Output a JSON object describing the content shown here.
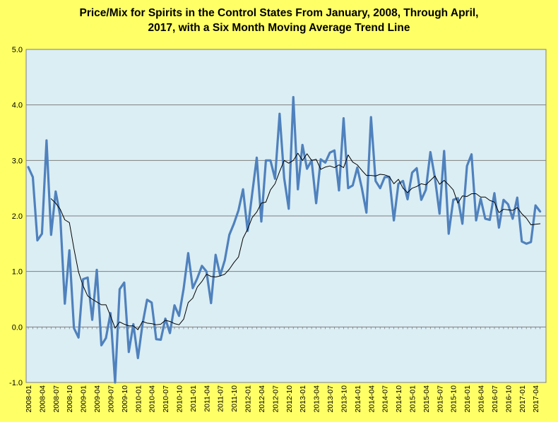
{
  "chart_data": {
    "type": "line",
    "title_lines": [
      "Price/Mix for Spirits in the Control States From January, 2008, Through April,",
      "2017, with a Six Month Moving Average Trend Line"
    ],
    "xlabel": "",
    "ylabel": "",
    "ylim": [
      -1.0,
      5.0
    ],
    "y_ticks": [
      "-1.0",
      "0.0",
      "1.0",
      "2.0",
      "3.0",
      "4.0",
      "5.0"
    ],
    "x_ticks": [
      "2008-01",
      "2008-04",
      "2008-07",
      "2008-10",
      "2009-01",
      "2009-04",
      "2009-07",
      "2009-10",
      "2010-01",
      "2010-04",
      "2010-07",
      "2010-10",
      "2011-01",
      "2011-04",
      "2011-07",
      "2011-10",
      "2012-01",
      "2012-04",
      "2012-07",
      "2012-10",
      "2013-01",
      "2013-04",
      "2013-07",
      "2013-10",
      "2014-01",
      "2014-04",
      "2014-07",
      "2014-10",
      "2015-01",
      "2015-04",
      "2015-07",
      "2015-10",
      "2016-01",
      "2016-04",
      "2016-07",
      "2016-10",
      "2017-01",
      "2017-04"
    ],
    "grid": "horizontal",
    "legend": "none",
    "colors": {
      "background": "#ffff66",
      "plot_area": "#dbeef4",
      "series": "#4f81bd",
      "trend": "#000000",
      "grid": "#7f7f7f"
    },
    "series": [
      {
        "values": [
          2.88,
          2.7,
          1.56,
          1.68,
          3.36,
          1.66,
          2.44,
          2.0,
          0.42,
          1.38,
          -0.02,
          -0.19,
          0.86,
          0.89,
          0.13,
          1.03,
          -0.33,
          -0.2,
          0.25,
          -1.0,
          0.68,
          0.8,
          -0.45,
          0.05,
          -0.56,
          0.05,
          0.49,
          0.44,
          -0.22,
          -0.23,
          0.15,
          -0.11,
          0.39,
          0.2,
          0.69,
          1.33,
          0.7,
          0.88,
          1.1,
          1.0,
          0.43,
          1.3,
          0.93,
          1.2,
          1.66,
          1.86,
          2.1,
          2.48,
          1.73,
          2.4,
          3.05,
          1.9,
          3.0,
          3.0,
          2.67,
          3.84,
          2.68,
          2.13,
          4.14,
          2.48,
          3.28,
          2.85,
          3.0,
          2.23,
          3.02,
          2.96,
          3.14,
          3.18,
          2.46,
          3.76,
          2.5,
          2.55,
          2.87,
          2.5,
          2.06,
          3.78,
          2.63,
          2.5,
          2.7,
          2.7,
          1.92,
          2.58,
          2.63,
          2.3,
          2.78,
          2.86,
          2.29,
          2.47,
          3.15,
          2.68,
          2.04,
          3.17,
          1.68,
          2.29,
          2.32,
          1.86,
          2.9,
          3.11,
          1.92,
          2.31,
          1.95,
          1.93,
          2.41,
          1.79,
          2.29,
          2.21,
          1.95,
          2.33,
          1.54,
          1.5,
          1.53,
          2.19,
          2.08
        ]
      },
      {
        "values": [
          null,
          null,
          null,
          null,
          null,
          2.31,
          2.23,
          2.12,
          1.93,
          1.88,
          1.41,
          0.99,
          0.74,
          0.56,
          0.5,
          0.45,
          0.4,
          0.4,
          0.2,
          -0.02,
          0.09,
          0.05,
          0.02,
          0.02,
          -0.05,
          0.1,
          0.07,
          0.06,
          0.04,
          0.05,
          0.12,
          0.1,
          0.06,
          0.04,
          0.14,
          0.44,
          0.52,
          0.72,
          0.82,
          0.95,
          0.91,
          0.9,
          0.92,
          0.95,
          1.04,
          1.16,
          1.26,
          1.6,
          1.76,
          1.97,
          2.07,
          2.23,
          2.25,
          2.47,
          2.58,
          2.8,
          3.0,
          2.95,
          3.0,
          3.13,
          3.0,
          3.12,
          3.0,
          3.02,
          2.84,
          2.88,
          2.9,
          2.87,
          2.92,
          2.87,
          3.1,
          2.97,
          2.92,
          2.82,
          2.73,
          2.73,
          2.72,
          2.75,
          2.74,
          2.71,
          2.58,
          2.66,
          2.5,
          2.42,
          2.5,
          2.53,
          2.58,
          2.56,
          2.64,
          2.72,
          2.57,
          2.64,
          2.56,
          2.47,
          2.23,
          2.36,
          2.35,
          2.4,
          2.4,
          2.34,
          2.34,
          2.28,
          2.25,
          2.06,
          2.12,
          2.11,
          2.1,
          2.15,
          2.04,
          1.96,
          1.84,
          1.85,
          1.86
        ]
      }
    ]
  }
}
